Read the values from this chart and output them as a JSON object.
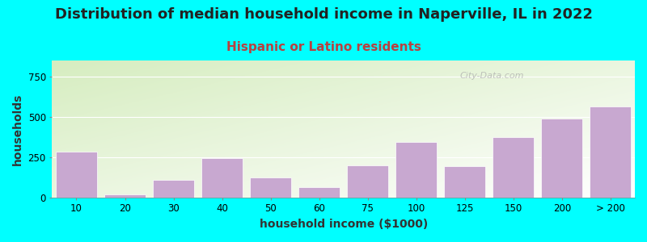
{
  "title": "Distribution of median household income in Naperville, IL in 2022",
  "subtitle": "Hispanic or Latino residents",
  "xlabel": "household income ($1000)",
  "ylabel": "households",
  "bar_labels": [
    "10",
    "20",
    "30",
    "40",
    "50",
    "60",
    "75",
    "100",
    "125",
    "150",
    "200",
    "> 200"
  ],
  "bar_values": [
    285,
    20,
    110,
    245,
    125,
    65,
    200,
    345,
    195,
    375,
    490,
    565
  ],
  "bar_color": "#C8A8D0",
  "bar_edge_color": "#ffffff",
  "background_color": "#00FFFF",
  "grad_color_topleft": "#d6edc0",
  "grad_color_bottomright": "#ffffff",
  "title_fontsize": 13,
  "title_color": "#222222",
  "subtitle_fontsize": 11,
  "subtitle_color": "#B84040",
  "axis_label_fontsize": 10,
  "tick_fontsize": 8.5,
  "ylim": [
    0,
    850
  ],
  "yticks": [
    0,
    250,
    500,
    750
  ],
  "watermark": "City-Data.com",
  "watermark_color": "#aaaaaa"
}
